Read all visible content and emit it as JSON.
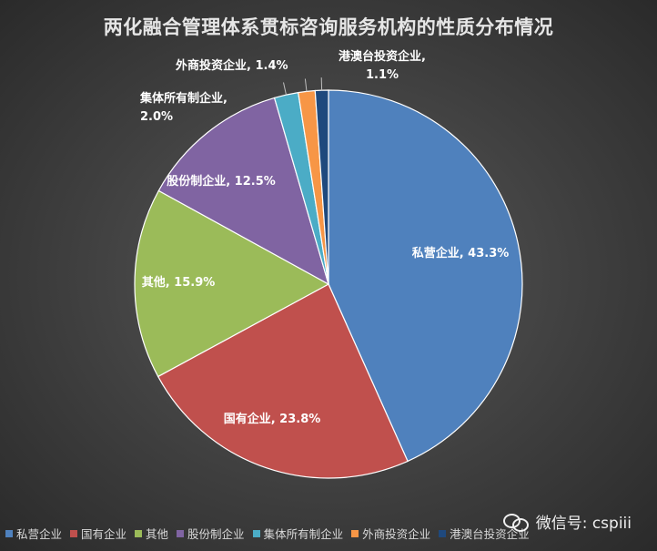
{
  "chart_data": {
    "type": "pie",
    "title": "两化融合管理体系贯标咨询服务机构的性质分布情况",
    "slices": [
      {
        "label": "私营企业",
        "value": 43.3,
        "display": "私营企业, 43.3%",
        "color": "#4f81bd"
      },
      {
        "label": "国有企业",
        "value": 23.8,
        "display": "国有企业, 23.8%",
        "color": "#c0504d"
      },
      {
        "label": "其他",
        "value": 15.9,
        "display": "其他, 15.9%",
        "color": "#9bbb59"
      },
      {
        "label": "股份制企业",
        "value": 12.5,
        "display": "股份制企业, 12.5%",
        "color": "#8064a2"
      },
      {
        "label": "集体所有制企业",
        "value": 2.0,
        "display": "集体所有制企业, 2.0%",
        "color": "#4bacc6"
      },
      {
        "label": "外商投资企业",
        "value": 1.4,
        "display": "外商投资企业, 1.4%",
        "color": "#f79646"
      },
      {
        "label": "港澳台投资企业",
        "value": 1.1,
        "display": "港澳台投资企业, 1.1%",
        "color": "#1f497d"
      }
    ],
    "legend_position": "bottom-left"
  },
  "watermark": {
    "text": "微信号: cspiii",
    "icon": "wechat-icon"
  }
}
